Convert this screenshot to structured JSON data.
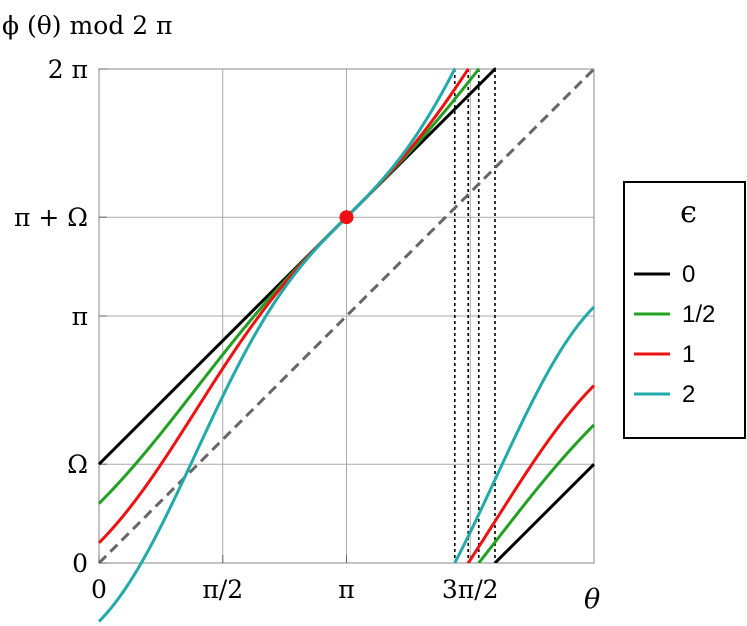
{
  "chart_data": {
    "type": "line",
    "ylabel": "ϕ (θ) mod 2 π",
    "xlabel": "θ",
    "x_ticks": [
      "0",
      "π/2",
      "π",
      "3π/2"
    ],
    "y_ticks": [
      "0",
      "Ω",
      "π",
      "π + Ω",
      "2 π"
    ],
    "xlim": [
      0,
      6.2832
    ],
    "ylim": [
      0,
      6.2832
    ],
    "omega": 1.2566,
    "grid": true,
    "legend": {
      "title": "ϵ",
      "placement": "right",
      "entries": [
        "0",
        "1/2",
        "1",
        "2"
      ]
    },
    "series": [
      {
        "name": "0",
        "epsilon": 0,
        "color": "#000000"
      },
      {
        "name": "1/2",
        "epsilon": 0.5,
        "color": "#22a022"
      },
      {
        "name": "1",
        "epsilon": 1,
        "color": "#ee1111"
      },
      {
        "name": "2",
        "epsilon": 2,
        "color": "#22aaaa"
      }
    ],
    "identity_line": {
      "color": "#666666"
    },
    "fixed_point": {
      "x": 3.1416,
      "y": 4.3982,
      "color": "#ee1111"
    }
  }
}
